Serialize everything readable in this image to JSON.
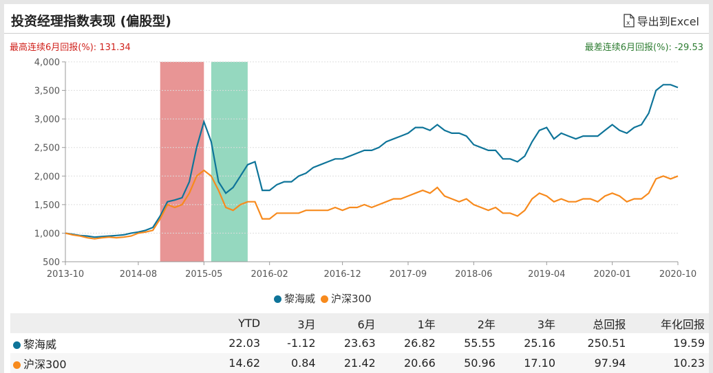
{
  "header": {
    "title": "投资经理指数表现 (偏股型)",
    "export_label": "导出到Excel",
    "export_icon": "excel-file-icon"
  },
  "stats": {
    "best_label": "最高连续6月回报(%):",
    "best_value": "131.34",
    "worst_label": "最差连续6月回报(%):",
    "worst_value": "-29.53",
    "best_color": "#d0221c",
    "worst_color": "#2e7d32"
  },
  "chart_data": {
    "type": "line",
    "yticks": [
      "500",
      "1,000",
      "1,500",
      "2,000",
      "2,500",
      "3,000",
      "3,500",
      "4,000"
    ],
    "ylim": [
      500,
      4000
    ],
    "xticks": [
      "2013-10",
      "2014-08",
      "2015-05",
      "2016-02",
      "2016-12",
      "2017-09",
      "2018-06",
      "2019-04",
      "2020-01",
      "2020-10"
    ],
    "grid": true,
    "legend": "bottom",
    "highlight_periods": [
      {
        "from": "2014-11",
        "to": "2015-05",
        "color": "#e89595"
      },
      {
        "from": "2015-06",
        "to": "2015-11",
        "color": "#95d8bf"
      }
    ],
    "x": [
      "2013-10",
      "2013-11",
      "2013-12",
      "2014-01",
      "2014-02",
      "2014-03",
      "2014-04",
      "2014-05",
      "2014-06",
      "2014-07",
      "2014-08",
      "2014-09",
      "2014-10",
      "2014-11",
      "2014-12",
      "2015-01",
      "2015-02",
      "2015-03",
      "2015-04",
      "2015-05",
      "2015-06",
      "2015-07",
      "2015-08",
      "2015-09",
      "2015-10",
      "2015-11",
      "2015-12",
      "2016-01",
      "2016-02",
      "2016-03",
      "2016-04",
      "2016-05",
      "2016-06",
      "2016-07",
      "2016-08",
      "2016-09",
      "2016-10",
      "2016-11",
      "2016-12",
      "2017-01",
      "2017-02",
      "2017-03",
      "2017-04",
      "2017-05",
      "2017-06",
      "2017-07",
      "2017-08",
      "2017-09",
      "2017-10",
      "2017-11",
      "2017-12",
      "2018-01",
      "2018-02",
      "2018-03",
      "2018-04",
      "2018-05",
      "2018-06",
      "2018-07",
      "2018-08",
      "2018-09",
      "2018-10",
      "2018-11",
      "2018-12",
      "2019-01",
      "2019-02",
      "2019-03",
      "2019-04",
      "2019-05",
      "2019-06",
      "2019-07",
      "2019-08",
      "2019-09",
      "2019-10",
      "2019-11",
      "2019-12",
      "2020-01",
      "2020-02",
      "2020-03",
      "2020-04",
      "2020-05",
      "2020-06",
      "2020-07",
      "2020-08",
      "2020-09",
      "2020-10"
    ],
    "series": [
      {
        "name": "黎海威",
        "color": "#0e7499",
        "values": [
          1000,
          980,
          960,
          950,
          930,
          940,
          950,
          960,
          970,
          1000,
          1020,
          1050,
          1100,
          1300,
          1550,
          1580,
          1620,
          1900,
          2500,
          2950,
          2600,
          1900,
          1700,
          1800,
          2000,
          2200,
          2250,
          1750,
          1750,
          1850,
          1900,
          1900,
          2000,
          2050,
          2150,
          2200,
          2250,
          2300,
          2300,
          2350,
          2400,
          2450,
          2450,
          2500,
          2600,
          2650,
          2700,
          2750,
          2850,
          2850,
          2800,
          2900,
          2800,
          2750,
          2750,
          2700,
          2550,
          2500,
          2450,
          2450,
          2300,
          2300,
          2250,
          2350,
          2600,
          2800,
          2850,
          2650,
          2750,
          2700,
          2650,
          2700,
          2700,
          2700,
          2800,
          2900,
          2800,
          2750,
          2850,
          2900,
          3100,
          3500,
          3600,
          3600,
          3550
        ]
      },
      {
        "name": "沪深300",
        "color": "#f78a1d",
        "values": [
          1000,
          970,
          950,
          920,
          900,
          920,
          930,
          920,
          930,
          950,
          1000,
          1020,
          1050,
          1250,
          1500,
          1450,
          1500,
          1700,
          2000,
          2100,
          2000,
          1750,
          1450,
          1400,
          1500,
          1550,
          1550,
          1250,
          1250,
          1350,
          1350,
          1350,
          1350,
          1400,
          1400,
          1400,
          1400,
          1450,
          1400,
          1450,
          1450,
          1500,
          1450,
          1500,
          1550,
          1600,
          1600,
          1650,
          1700,
          1750,
          1700,
          1800,
          1650,
          1600,
          1550,
          1600,
          1500,
          1450,
          1400,
          1450,
          1350,
          1350,
          1300,
          1400,
          1600,
          1700,
          1650,
          1550,
          1600,
          1550,
          1550,
          1600,
          1600,
          1550,
          1650,
          1700,
          1650,
          1550,
          1600,
          1600,
          1700,
          1950,
          2000,
          1950,
          2000
        ]
      }
    ]
  },
  "table": {
    "columns": [
      "",
      "YTD",
      "3月",
      "6月",
      "1年",
      "2年",
      "3年",
      "总回报",
      "年化回报"
    ],
    "rows": [
      {
        "name": "黎海威",
        "color": "#0e7499",
        "values": [
          "22.03",
          "-1.12",
          "23.63",
          "26.82",
          "55.55",
          "25.16",
          "250.51",
          "19.59"
        ]
      },
      {
        "name": "沪深300",
        "color": "#f78a1d",
        "values": [
          "14.62",
          "0.84",
          "21.42",
          "20.66",
          "50.96",
          "17.10",
          "97.94",
          "10.23"
        ]
      }
    ]
  }
}
